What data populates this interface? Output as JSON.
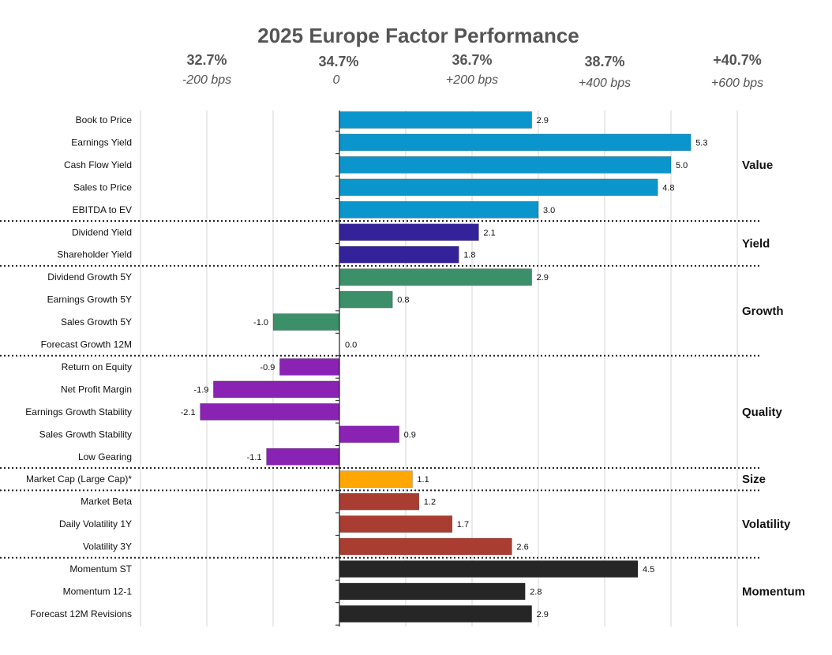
{
  "chart_data": {
    "type": "bar",
    "orientation": "horizontal",
    "title": "2025 Europe Factor Performance",
    "xlim": [
      -3,
      6
    ],
    "grid": true,
    "top_axis": [
      {
        "value": -2,
        "pct": "32.7%",
        "bps": "-200 bps"
      },
      {
        "value": 0,
        "pct": "34.7%",
        "bps": "0"
      },
      {
        "value": 2,
        "pct": "36.7%",
        "bps": "+200 bps"
      },
      {
        "value": 4,
        "pct": "38.7%",
        "bps": "+400 bps"
      },
      {
        "value": 6,
        "pct": "+40.7%",
        "bps": "+600 bps"
      }
    ],
    "groups": [
      {
        "name": "Value",
        "color": "#0a95cc",
        "items": [
          {
            "label": "Book to Price",
            "value": 2.9,
            "text": "2.9"
          },
          {
            "label": "Earnings Yield",
            "value": 5.3,
            "text": "5.3"
          },
          {
            "label": "Cash Flow Yield",
            "value": 5.0,
            "text": "5.0"
          },
          {
            "label": "Sales to Price",
            "value": 4.8,
            "text": "4.8"
          },
          {
            "label": "EBITDA to EV",
            "value": 3.0,
            "text": "3.0"
          }
        ]
      },
      {
        "name": "Yield",
        "color": "#34229a",
        "items": [
          {
            "label": "Dividend Yield",
            "value": 2.1,
            "text": "2.1"
          },
          {
            "label": "Shareholder Yield",
            "value": 1.8,
            "text": "1.8"
          }
        ]
      },
      {
        "name": "Growth",
        "color": "#3b8f69",
        "items": [
          {
            "label": "Dividend Growth 5Y",
            "value": 2.9,
            "text": "2.9"
          },
          {
            "label": "Earnings Growth 5Y",
            "value": 0.8,
            "text": "0.8"
          },
          {
            "label": "Sales Growth 5Y",
            "value": -1.0,
            "text": "-1.0"
          },
          {
            "label": "Forecast Growth 12M",
            "value": 0.0,
            "text": "0.0"
          }
        ]
      },
      {
        "name": "Quality",
        "color": "#8a22b3",
        "items": [
          {
            "label": "Return on Equity",
            "value": -0.9,
            "text": "-0.9"
          },
          {
            "label": "Net Profit Margin",
            "value": -1.9,
            "text": "-1.9"
          },
          {
            "label": "Earnings Growth Stability",
            "value": -2.1,
            "text": "-2.1"
          },
          {
            "label": "Sales Growth Stability",
            "value": 0.9,
            "text": "0.9"
          },
          {
            "label": "Low Gearing",
            "value": -1.1,
            "text": "-1.1"
          }
        ]
      },
      {
        "name": "Size",
        "color": "#ffa600",
        "items": [
          {
            "label": "Market Cap (Large Cap)*",
            "value": 1.1,
            "text": "1.1"
          }
        ]
      },
      {
        "name": "Volatility",
        "color": "#a93d31",
        "items": [
          {
            "label": "Market Beta",
            "value": 1.2,
            "text": "1.2"
          },
          {
            "label": "Daily Volatility 1Y",
            "value": 1.7,
            "text": "1.7"
          },
          {
            "label": "Volatility 3Y",
            "value": 2.6,
            "text": "2.6"
          }
        ]
      },
      {
        "name": "Momentum",
        "color": "#262626",
        "items": [
          {
            "label": "Momentum ST",
            "value": 4.5,
            "text": "4.5"
          },
          {
            "label": "Momentum 12-1",
            "value": 2.8,
            "text": "2.8"
          },
          {
            "label": "Forecast 12M Revisions",
            "value": 2.9,
            "text": "2.9"
          }
        ]
      }
    ]
  }
}
